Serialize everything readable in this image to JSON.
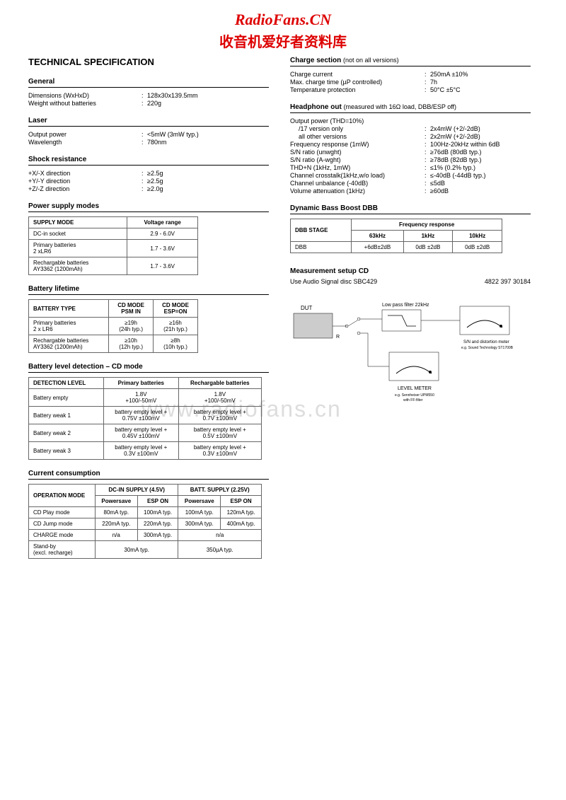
{
  "logo": {
    "en": "RadioFans.CN",
    "cn": "收音机爱好者资料库"
  },
  "watermark": "www.radiofans.cn",
  "main_title": "TECHNICAL SPECIFICATION",
  "general": {
    "title": "General",
    "rows": [
      {
        "label": "Dimensions (WxHxD)",
        "value": "128x30x139.5mm"
      },
      {
        "label": "Weight without batteries",
        "value": "220g"
      }
    ]
  },
  "laser": {
    "title": "Laser",
    "rows": [
      {
        "label": "Output power",
        "value": "<5mW (3mW typ.)"
      },
      {
        "label": "Wavelength",
        "value": "780nm"
      }
    ]
  },
  "shock": {
    "title": "Shock resistance",
    "rows": [
      {
        "label": "+X/-X direction",
        "value": "≥2.5g"
      },
      {
        "label": "+Y/-Y direction",
        "value": "≥2.5g"
      },
      {
        "label": "+Z/-Z direction",
        "value": "≥2.0g"
      }
    ]
  },
  "power_supply": {
    "title": "Power supply modes",
    "headers": [
      "SUPPLY MODE",
      "Voltage range"
    ],
    "rows": [
      [
        "DC-in socket",
        "2.9 - 6.0V"
      ],
      [
        "Primary batteries\n2 xLR6",
        "1.7 - 3.6V"
      ],
      [
        "Rechargable batteries\nAY3362 (1200mAh)",
        "1.7 - 3.6V"
      ]
    ]
  },
  "battery_lifetime": {
    "title": "Battery lifetime",
    "headers": [
      "BATTERY TYPE",
      "CD MODE\nPSM IN",
      "CD MODE\nESP=ON"
    ],
    "rows": [
      [
        "Primary batteries\n2 x LR6",
        "≥19h\n(24h typ.)",
        "≥16h\n(21h typ.)"
      ],
      [
        "Rechargable batteries\nAY3362 (1200mAh)",
        "≥10h\n(12h typ.)",
        "≥8h\n(10h typ.)"
      ]
    ]
  },
  "battery_level": {
    "title": "Battery level detection – CD mode",
    "headers": [
      "DETECTION LEVEL",
      "Primary batteries",
      "Rechargable batteries"
    ],
    "rows": [
      [
        "Battery empty",
        "1.8V\n+100/-50mV",
        "1.8V\n+100/-50mV"
      ],
      [
        "Battery weak 1",
        "battery empty level +\n0.75V ±100mV",
        "battery empty level +\n0.7V ±100mV"
      ],
      [
        "Battery weak 2",
        "battery empty level +\n0.45V ±100mV",
        "battery empty level +\n0.5V ±100mV"
      ],
      [
        "Battery weak 3",
        "battery empty level +\n0.3V ±100mV",
        "battery empty level +\n0.3V ±100mV"
      ]
    ]
  },
  "current": {
    "title": "Current consumption",
    "h1": [
      "OPERATION MODE",
      "DC-IN SUPPLY (4.5V)",
      "BATT. SUPPLY (2.25V)"
    ],
    "h2": [
      "Powersave",
      "ESP ON",
      "Powersave",
      "ESP ON"
    ],
    "rows": [
      {
        "mode": "CD Play mode",
        "cells": [
          "80mA typ.",
          "100mA typ.",
          "100mA typ.",
          "120mA typ."
        ]
      },
      {
        "mode": "CD Jump mode",
        "cells": [
          "220mA typ.",
          "220mA typ.",
          "300mA typ.",
          "400mA typ."
        ]
      }
    ],
    "charge_row": {
      "mode": "CHARGE mode",
      "c1": "n/a",
      "c2": "300mA typ.",
      "c3": "n/a"
    },
    "standby_row": {
      "mode": "Stand-by\n(excl. recharge)",
      "c1": "30mA typ.",
      "c2": "350µA typ."
    }
  },
  "charge": {
    "title": "Charge section",
    "note": "(not on all versions)",
    "rows": [
      {
        "label": "Charge current",
        "value": "250mA ±10%"
      },
      {
        "label": "Max. charge time (µP controlled)",
        "value": "7h"
      },
      {
        "label": "Temperature protection",
        "value": "50°C ±5°C"
      }
    ]
  },
  "headphone": {
    "title": "Headphone out",
    "note": "(measured with 16Ω load, DBB/ESP off)",
    "power_label": "Output power (THD=10%)",
    "rows": [
      {
        "label": "/17 version only",
        "value": "2x4mW (+2/-2dB)",
        "indent": true
      },
      {
        "label": "all other versions",
        "value": "2x2mW (+2/-2dB)",
        "indent": true
      },
      {
        "label": "Frequency response (1mW)",
        "value": "100Hz-20kHz within 6dB"
      },
      {
        "label": "S/N ratio (unwght)",
        "value": "≥76dB (80dB typ.)"
      },
      {
        "label": "S/N ratio (A-wght)",
        "value": "≥78dB (82dB typ.)"
      },
      {
        "label": "THD+N (1kHz, 1mW)",
        "value": "≤1% (0.2% typ.)"
      },
      {
        "label": "Channel crosstalk(1kHz,w/o load)",
        "value": "≤-40dB (-44dB typ.)"
      },
      {
        "label": "Channel unbalance (-40dB)",
        "value": "≤5dB"
      },
      {
        "label": "Volume attenuation (1kHz)",
        "value": "≥60dB"
      }
    ]
  },
  "dbb": {
    "title": "Dynamic Bass Boost DBB",
    "h1": [
      "DBB STAGE",
      "Frequency response"
    ],
    "h2": [
      "63kHz",
      "1kHz",
      "10kHz"
    ],
    "row": [
      "DBB",
      "+6dB±2dB",
      "0dB ±2dB",
      "0dB ±2dB"
    ]
  },
  "measurement": {
    "title": "Measurement setup CD",
    "sub1": "Use Audio Signal disc SBC429",
    "sub2": "4822 397 30184",
    "dut": "DUT",
    "r": "R",
    "lpf": "Low pass filter 22kHz",
    "sn": "S/N and distortion meter",
    "sn_sub": "e.g. Sound Technology ST1700B",
    "lm": "LEVEL METER",
    "lm_sub": "e.g. Sennheiser UPM550\nwith FF-filter"
  }
}
